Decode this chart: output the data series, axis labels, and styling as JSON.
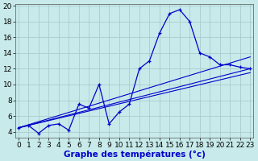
{
  "xlabel": "Graphe des températures (°c)",
  "background_color": "#c8eaea",
  "grid_color": "#a8cccc",
  "line_color": "#0000cc",
  "xlim_min": -0.3,
  "xlim_max": 23.3,
  "ylim_min": 3.2,
  "ylim_max": 20.2,
  "xticks": [
    0,
    1,
    2,
    3,
    4,
    5,
    6,
    7,
    8,
    9,
    10,
    11,
    12,
    13,
    14,
    15,
    16,
    17,
    18,
    19,
    20,
    21,
    22,
    23
  ],
  "yticks": [
    4,
    6,
    8,
    10,
    12,
    14,
    16,
    18,
    20
  ],
  "main_x": [
    0,
    1,
    2,
    3,
    4,
    5,
    6,
    7,
    8,
    9,
    10,
    11,
    12,
    13,
    14,
    15,
    16,
    17,
    18,
    19,
    20,
    21,
    22,
    23
  ],
  "main_y": [
    4.5,
    4.8,
    3.8,
    4.8,
    5.0,
    4.2,
    7.5,
    7.0,
    10.0,
    5.0,
    6.5,
    7.5,
    12.0,
    13.0,
    16.5,
    19.0,
    19.5,
    18.0,
    14.0,
    13.5,
    12.5,
    12.5,
    12.2,
    12.0
  ],
  "trend_lines": [
    {
      "x": [
        0,
        23
      ],
      "y": [
        4.5,
        12.0
      ]
    },
    {
      "x": [
        0,
        23
      ],
      "y": [
        4.5,
        13.5
      ]
    },
    {
      "x": [
        0,
        23
      ],
      "y": [
        4.5,
        11.5
      ]
    }
  ],
  "tick_fontsize": 6.5,
  "label_fontsize": 7.5
}
